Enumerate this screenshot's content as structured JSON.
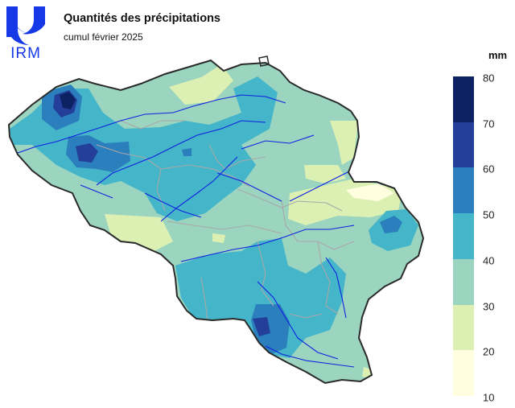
{
  "header": {
    "title": "Quantités des précipitations",
    "subtitle": "cumul février 2025"
  },
  "logo": {
    "text": "IRM",
    "color": "#1638e6"
  },
  "legend": {
    "unit": "mm",
    "ticks": [
      "80",
      "70",
      "60",
      "50",
      "40",
      "30",
      "20",
      "10"
    ],
    "classes": [
      {
        "range": [
          70,
          80
        ],
        "color": "#0d2263"
      },
      {
        "range": [
          60,
          70
        ],
        "color": "#233f9a"
      },
      {
        "range": [
          50,
          60
        ],
        "color": "#2a7fbc"
      },
      {
        "range": [
          40,
          50
        ],
        "color": "#45b5c9"
      },
      {
        "range": [
          30,
          40
        ],
        "color": "#9bd5c0"
      },
      {
        "range": [
          20,
          30
        ],
        "color": "#dcf0b3"
      },
      {
        "range": [
          10,
          20
        ],
        "color": "#ffffe0"
      }
    ]
  },
  "map": {
    "region": "Belgium",
    "colors": {
      "rivers": "#1020e0",
      "provinces": "#a8a8a8",
      "border": "#2a2a2a"
    }
  }
}
